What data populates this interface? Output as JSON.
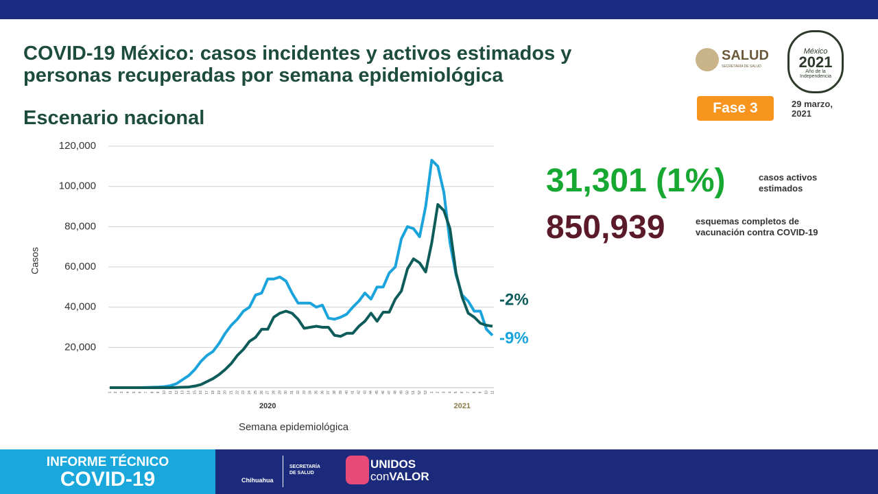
{
  "header": {
    "subtitle": "Escenario nacional",
    "logo_salud": "SALUD",
    "logo_salud_sub": "SECRETARÍA DE SALUD",
    "logo_2021": [
      "México",
      "2021",
      "Año de la Independencia"
    ],
    "phase": "Fase 3",
    "date": [
      "29 marzo,",
      "2021"
    ]
  },
  "stats": [
    {
      "value": "31,301 (1%)",
      "label": [
        "casos activos",
        "estimados"
      ]
    },
    {
      "value": "850,939",
      "label": [
        "esquemas completos de",
        "vacunación contra COVID-19"
      ]
    }
  ],
  "footer": {
    "report": [
      "INFORME TÉCNICO",
      "COVID-19"
    ],
    "state": "Chihuahua",
    "dept": [
      "SECRETARÍA",
      "DE SALUD"
    ],
    "slogan": [
      "UNIDOS",
      "con",
      "VALOR"
    ]
  },
  "chart_data": {
    "type": "line",
    "title": "COVID-19 México: casos incidentes y activos estimados y personas recuperadas por semana epidemiológica",
    "xlabel": "Semana epidemiológica",
    "ylabel": "Casos",
    "x_groups": [
      "2020",
      "2021"
    ],
    "categories": [
      "1",
      "2",
      "3",
      "4",
      "5",
      "6",
      "7",
      "8",
      "9",
      "10",
      "11",
      "12",
      "13",
      "14",
      "15",
      "16",
      "17",
      "18",
      "19",
      "20",
      "21",
      "22",
      "23",
      "24",
      "25",
      "26",
      "27",
      "28",
      "29",
      "30",
      "31",
      "32",
      "33",
      "34",
      "35",
      "36",
      "37",
      "38",
      "39",
      "40",
      "41",
      "42",
      "43",
      "44",
      "45",
      "46",
      "47",
      "48",
      "49",
      "50",
      "51",
      "52",
      "53",
      "1",
      "2",
      "3",
      "4",
      "5",
      "6",
      "7",
      "8",
      "9",
      "10",
      "11"
    ],
    "series": [
      {
        "color": "#1ba3dc",
        "values": [
          0,
          0,
          0,
          0,
          0,
          0,
          100,
          200,
          300,
          500,
          1000,
          2000,
          4000,
          6000,
          9000,
          13000,
          16000,
          18000,
          22000,
          27000,
          31000,
          34000,
          38000,
          40000,
          46000,
          47000,
          54000,
          54000,
          55000,
          53000,
          47000,
          42000,
          42000,
          42000,
          40000,
          41000,
          34500,
          34000,
          35000,
          36500,
          40000,
          43000,
          47000,
          44000,
          50000,
          50000,
          57000,
          60000,
          74000,
          80000,
          79000,
          75000,
          90000,
          113000,
          110000,
          97000,
          72000,
          56000,
          46000,
          43000,
          38000,
          38000,
          29000,
          26000
        ]
      },
      {
        "color": "#0d5c5a",
        "values": [
          0,
          0,
          0,
          0,
          0,
          0,
          0,
          0,
          0,
          0,
          0,
          100,
          200,
          300,
          800,
          1500,
          3000,
          4500,
          6500,
          9000,
          12000,
          16000,
          19000,
          23000,
          25000,
          29000,
          29000,
          35000,
          37000,
          38000,
          37000,
          34000,
          29500,
          30000,
          30500,
          30000,
          30000,
          26000,
          25500,
          27000,
          27000,
          30500,
          33000,
          37000,
          33000,
          37500,
          37500,
          44000,
          48000,
          59000,
          64000,
          62000,
          57500,
          72000,
          91000,
          88000,
          79000,
          57000,
          45000,
          37000,
          35000,
          32000,
          31000,
          30500
        ]
      }
    ],
    "annotations": [
      {
        "text": "-2%",
        "color": "#0d5c5a"
      },
      {
        "text": "-9%",
        "color": "#1ba3dc"
      }
    ],
    "ylim": [
      0,
      120000
    ],
    "yticks": [
      {
        "value": 20000,
        "label": "20,000"
      },
      {
        "value": 40000,
        "label": "40,000"
      },
      {
        "value": 60000,
        "label": "60,000"
      },
      {
        "value": 80000,
        "label": "80,000"
      },
      {
        "value": 100000,
        "label": "100,000"
      },
      {
        "value": 120000,
        "label": "120,000"
      }
    ],
    "grid": true
  }
}
